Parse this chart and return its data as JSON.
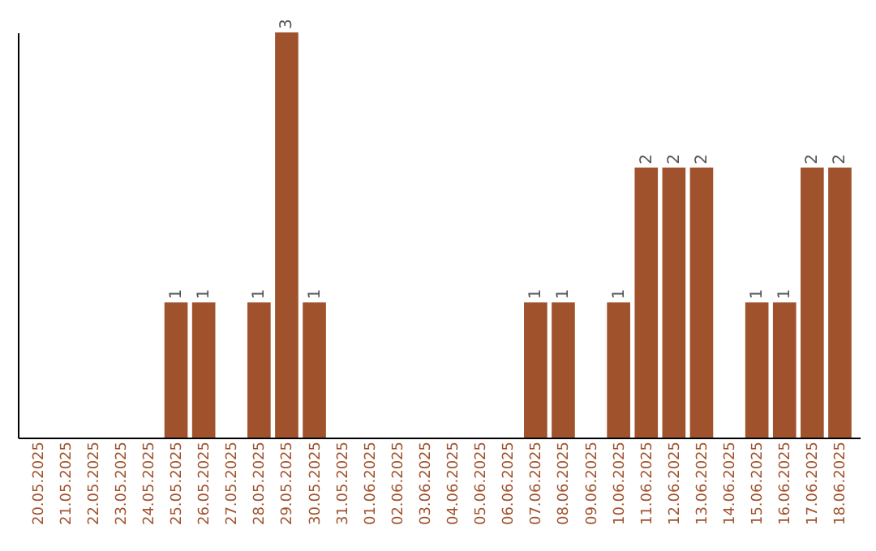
{
  "chart_data": {
    "type": "bar",
    "categories": [
      "20.05.2025",
      "21.05.2025",
      "22.05.2025",
      "23.05.2025",
      "24.05.2025",
      "25.05.2025",
      "26.05.2025",
      "27.05.2025",
      "28.05.2025",
      "29.05.2025",
      "30.05.2025",
      "31.05.2025",
      "01.06.2025",
      "02.06.2025",
      "03.06.2025",
      "04.06.2025",
      "05.06.2025",
      "06.06.2025",
      "07.06.2025",
      "08.06.2025",
      "09.06.2025",
      "10.06.2025",
      "11.06.2025",
      "12.06.2025",
      "13.06.2025",
      "14.06.2025",
      "15.06.2025",
      "16.06.2025",
      "17.06.2025",
      "18.06.2025"
    ],
    "values": [
      0,
      0,
      0,
      0,
      0,
      1,
      1,
      0,
      1,
      3,
      1,
      0,
      0,
      0,
      0,
      0,
      0,
      0,
      1,
      1,
      0,
      1,
      2,
      2,
      2,
      0,
      1,
      1,
      2,
      2
    ],
    "value_labels": [
      null,
      null,
      null,
      null,
      null,
      "1",
      "1",
      null,
      "1",
      "3",
      "1",
      null,
      null,
      null,
      null,
      null,
      null,
      null,
      "1",
      "1",
      null,
      "1",
      "2",
      "2",
      "2",
      null,
      "1",
      "1",
      "2",
      "2"
    ],
    "color": "#a0522d",
    "ylim": [
      0,
      3
    ],
    "tick_labels": "x",
    "grid": false
  }
}
